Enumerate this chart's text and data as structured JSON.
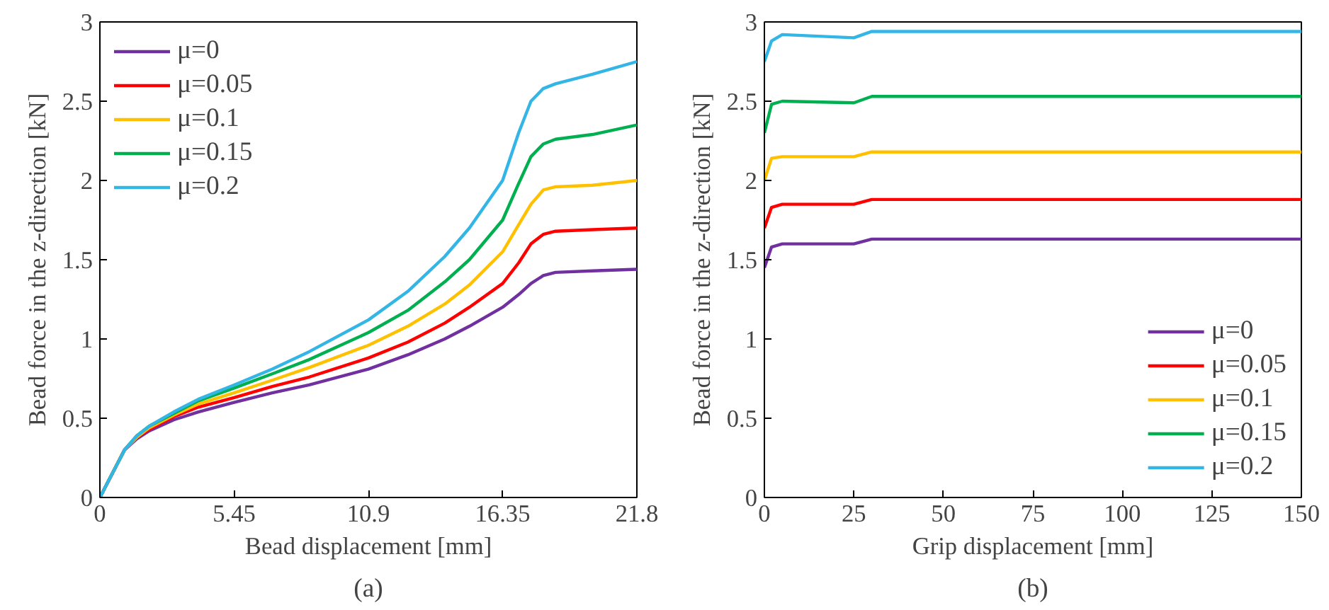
{
  "chart_data": [
    {
      "type": "line",
      "xlabel": "Bead displacement [mm]",
      "ylabel": "Bead force in the z-direction [kN]",
      "annotations": [
        "(a)"
      ],
      "xlim": [
        0,
        21.8
      ],
      "ylim": [
        0,
        3
      ],
      "xticks": [
        0,
        5.45,
        10.9,
        16.35,
        21.8
      ],
      "yticks": [
        0,
        0.5,
        1,
        1.5,
        2,
        2.5,
        3
      ],
      "grid": false,
      "legend": "top left",
      "x": [
        0,
        1,
        1.5,
        2,
        3,
        4,
        5.45,
        7,
        8.5,
        10.9,
        12.5,
        14,
        15,
        16.35,
        17,
        17.5,
        18,
        18.5,
        20,
        21.8
      ],
      "series": [
        {
          "name": "μ=0",
          "color": "#7030a0",
          "values": [
            0,
            0.3,
            0.37,
            0.42,
            0.49,
            0.54,
            0.6,
            0.66,
            0.71,
            0.81,
            0.9,
            1.0,
            1.08,
            1.2,
            1.28,
            1.35,
            1.4,
            1.42,
            1.43,
            1.44
          ]
        },
        {
          "name": "μ=0.05",
          "color": "#ff0000",
          "values": [
            0,
            0.3,
            0.38,
            0.43,
            0.51,
            0.57,
            0.63,
            0.7,
            0.76,
            0.88,
            0.98,
            1.1,
            1.2,
            1.35,
            1.48,
            1.6,
            1.66,
            1.68,
            1.69,
            1.7
          ]
        },
        {
          "name": "μ=0.1",
          "color": "#ffc000",
          "values": [
            0,
            0.3,
            0.38,
            0.44,
            0.52,
            0.59,
            0.66,
            0.74,
            0.82,
            0.96,
            1.08,
            1.22,
            1.34,
            1.55,
            1.72,
            1.85,
            1.94,
            1.96,
            1.97,
            2.0
          ]
        },
        {
          "name": "μ=0.15",
          "color": "#00b050",
          "values": [
            0,
            0.3,
            0.39,
            0.45,
            0.53,
            0.61,
            0.69,
            0.78,
            0.87,
            1.04,
            1.18,
            1.36,
            1.5,
            1.75,
            1.98,
            2.15,
            2.23,
            2.26,
            2.29,
            2.35
          ]
        },
        {
          "name": "μ=0.2",
          "color": "#33b5e5",
          "values": [
            0,
            0.3,
            0.39,
            0.45,
            0.54,
            0.62,
            0.71,
            0.81,
            0.92,
            1.12,
            1.3,
            1.52,
            1.7,
            2.0,
            2.3,
            2.5,
            2.58,
            2.61,
            2.67,
            2.75
          ]
        }
      ]
    },
    {
      "type": "line",
      "xlabel": "Grip displacement [mm]",
      "ylabel": "Bead force in the z-direction [kN]",
      "annotations": [
        "(b)"
      ],
      "xlim": [
        0,
        150
      ],
      "ylim": [
        0,
        3
      ],
      "xticks": [
        0,
        25,
        50,
        75,
        100,
        125,
        150
      ],
      "yticks": [
        0,
        0.5,
        1,
        1.5,
        2,
        2.5,
        3
      ],
      "grid": false,
      "legend": "bottom right",
      "x": [
        0,
        2,
        5,
        25,
        30,
        150
      ],
      "series": [
        {
          "name": "μ=0",
          "color": "#7030a0",
          "values": [
            1.45,
            1.58,
            1.6,
            1.6,
            1.63,
            1.63
          ]
        },
        {
          "name": "μ=0.05",
          "color": "#ff0000",
          "values": [
            1.7,
            1.83,
            1.85,
            1.85,
            1.88,
            1.88
          ]
        },
        {
          "name": "μ=0.1",
          "color": "#ffc000",
          "values": [
            2.0,
            2.14,
            2.15,
            2.15,
            2.18,
            2.18
          ]
        },
        {
          "name": "μ=0.15",
          "color": "#00b050",
          "values": [
            2.3,
            2.48,
            2.5,
            2.49,
            2.53,
            2.53
          ]
        },
        {
          "name": "μ=0.2",
          "color": "#33b5e5",
          "values": [
            2.75,
            2.88,
            2.92,
            2.9,
            2.94,
            2.94
          ]
        }
      ]
    }
  ]
}
